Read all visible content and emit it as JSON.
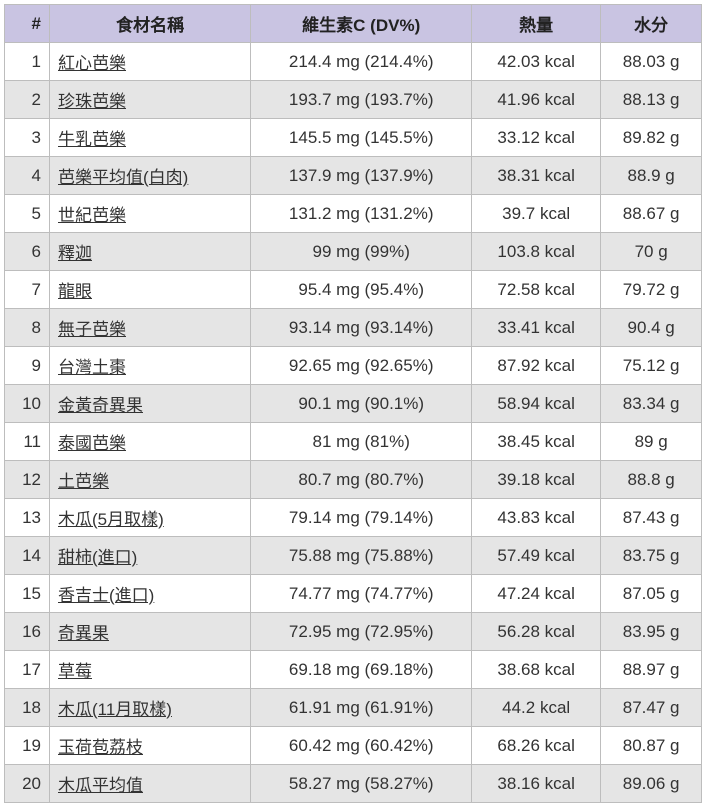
{
  "headers": {
    "idx": "#",
    "name": "食材名稱",
    "vitc": "維生素C (DV%)",
    "cal": "熱量",
    "water": "水分"
  },
  "rows": [
    {
      "idx": "1",
      "name": "紅心芭樂",
      "vitc": "214.4 mg (214.4%)",
      "cal": "42.03 kcal",
      "water": "88.03 g"
    },
    {
      "idx": "2",
      "name": "珍珠芭樂",
      "vitc": "193.7 mg (193.7%)",
      "cal": "41.96 kcal",
      "water": "88.13 g"
    },
    {
      "idx": "3",
      "name": "牛乳芭樂",
      "vitc": "145.5 mg (145.5%)",
      "cal": "33.12 kcal",
      "water": "89.82 g"
    },
    {
      "idx": "4",
      "name": "芭樂平均值(白肉)",
      "vitc": "137.9 mg (137.9%)",
      "cal": "38.31 kcal",
      "water": "88.9 g"
    },
    {
      "idx": "5",
      "name": "世紀芭樂",
      "vitc": "131.2 mg (131.2%)",
      "cal": "39.7 kcal",
      "water": "88.67 g"
    },
    {
      "idx": "6",
      "name": "釋迦",
      "vitc": "99 mg (99%)",
      "cal": "103.8 kcal",
      "water": "70 g"
    },
    {
      "idx": "7",
      "name": "龍眼",
      "vitc": "95.4 mg (95.4%)",
      "cal": "72.58 kcal",
      "water": "79.72 g"
    },
    {
      "idx": "8",
      "name": "無子芭樂",
      "vitc": "93.14 mg (93.14%)",
      "cal": "33.41 kcal",
      "water": "90.4 g"
    },
    {
      "idx": "9",
      "name": "台灣土棗",
      "vitc": "92.65 mg (92.65%)",
      "cal": "87.92 kcal",
      "water": "75.12 g"
    },
    {
      "idx": "10",
      "name": "金黃奇異果",
      "vitc": "90.1 mg (90.1%)",
      "cal": "58.94 kcal",
      "water": "83.34 g"
    },
    {
      "idx": "11",
      "name": "泰國芭樂",
      "vitc": "81 mg (81%)",
      "cal": "38.45 kcal",
      "water": "89 g"
    },
    {
      "idx": "12",
      "name": "土芭樂",
      "vitc": "80.7 mg (80.7%)",
      "cal": "39.18 kcal",
      "water": "88.8 g"
    },
    {
      "idx": "13",
      "name": "木瓜(5月取樣)",
      "vitc": "79.14 mg (79.14%)",
      "cal": "43.83 kcal",
      "water": "87.43 g"
    },
    {
      "idx": "14",
      "name": "甜柿(進口)",
      "vitc": "75.88 mg (75.88%)",
      "cal": "57.49 kcal",
      "water": "83.75 g"
    },
    {
      "idx": "15",
      "name": "香吉士(進口)",
      "vitc": "74.77 mg (74.77%)",
      "cal": "47.24 kcal",
      "water": "87.05 g"
    },
    {
      "idx": "16",
      "name": "奇異果",
      "vitc": "72.95 mg (72.95%)",
      "cal": "56.28 kcal",
      "water": "83.95 g"
    },
    {
      "idx": "17",
      "name": "草莓",
      "vitc": "69.18 mg (69.18%)",
      "cal": "38.68 kcal",
      "water": "88.97 g"
    },
    {
      "idx": "18",
      "name": "木瓜(11月取樣)",
      "vitc": "61.91 mg (61.91%)",
      "cal": "44.2 kcal",
      "water": "87.47 g"
    },
    {
      "idx": "19",
      "name": "玉荷苞荔枝",
      "vitc": "60.42 mg (60.42%)",
      "cal": "68.26 kcal",
      "water": "80.87 g"
    },
    {
      "idx": "20",
      "name": "木瓜平均值",
      "vitc": "58.27 mg (58.27%)",
      "cal": "38.16 kcal",
      "water": "89.06 g"
    }
  ]
}
